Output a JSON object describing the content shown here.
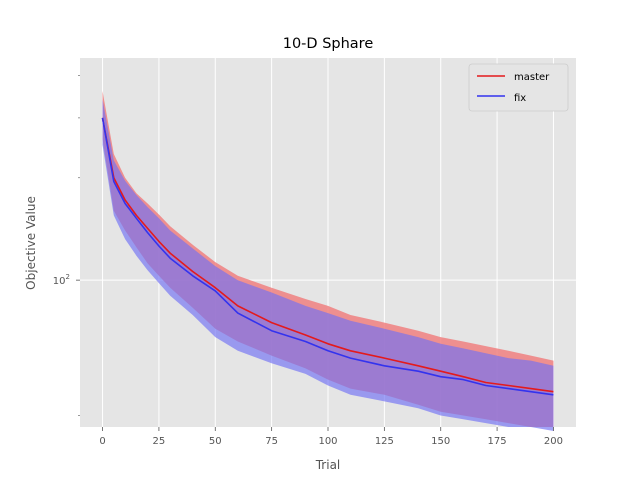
{
  "chart_data": {
    "type": "line",
    "title": "10-D Sphare",
    "xlabel": "Trial",
    "ylabel": "Objective Value",
    "xlim": [
      -10,
      210
    ],
    "ylim": [
      37,
      450
    ],
    "yscale": "log",
    "grid": true,
    "legend_position": "top-right",
    "x_ticks": [
      0,
      25,
      50,
      75,
      100,
      125,
      150,
      175,
      200
    ],
    "x_tick_labels": [
      "0",
      "25",
      "50",
      "75",
      "100",
      "125",
      "150",
      "175",
      "200"
    ],
    "y_major_ticks": [
      100
    ],
    "y_major_base": "10",
    "y_major_exp": "2",
    "y_minor_ticks": [
      40,
      200,
      300,
      400
    ],
    "series": [
      {
        "name": "master",
        "color": "#e41a1c",
        "band_color": "#f08080",
        "x": [
          0,
          5,
          10,
          15,
          20,
          25,
          30,
          40,
          50,
          60,
          75,
          90,
          100,
          110,
          125,
          140,
          150,
          160,
          170,
          180,
          190,
          200
        ],
        "mean": [
          300,
          200,
          172,
          155,
          142,
          130,
          120,
          106,
          95,
          84,
          75,
          69,
          65,
          62,
          59,
          56,
          54,
          52,
          50,
          49,
          48,
          47
        ],
        "lower": [
          260,
          160,
          140,
          125,
          112,
          103,
          95,
          83,
          72,
          66,
          60,
          55,
          51,
          48,
          46,
          43,
          41,
          40,
          39,
          38,
          37,
          37
        ],
        "upper": [
          360,
          235,
          200,
          180,
          168,
          156,
          144,
          127,
          113,
          103,
          95,
          88,
          84,
          79,
          75,
          71,
          68,
          66,
          64,
          62,
          60,
          58
        ]
      },
      {
        "name": "fix",
        "color": "#3333ee",
        "band_color": "#7070f5",
        "x": [
          0,
          5,
          10,
          15,
          20,
          25,
          30,
          40,
          50,
          60,
          75,
          90,
          100,
          110,
          125,
          140,
          150,
          160,
          170,
          180,
          190,
          200
        ],
        "mean": [
          300,
          195,
          168,
          152,
          138,
          126,
          116,
          103,
          93,
          80,
          71,
          66,
          62,
          59,
          56,
          54,
          52,
          51,
          49,
          48,
          47,
          46
        ],
        "lower": [
          250,
          155,
          132,
          118,
          107,
          98,
          90,
          79,
          68,
          62,
          57,
          53,
          49,
          46,
          44,
          42,
          40,
          39,
          38,
          37,
          37,
          36
        ],
        "upper": [
          340,
          225,
          196,
          178,
          164,
          152,
          140,
          124,
          110,
          100,
          92,
          84,
          80,
          76,
          72,
          68,
          65,
          63,
          61,
          59,
          58,
          56
        ]
      }
    ]
  }
}
